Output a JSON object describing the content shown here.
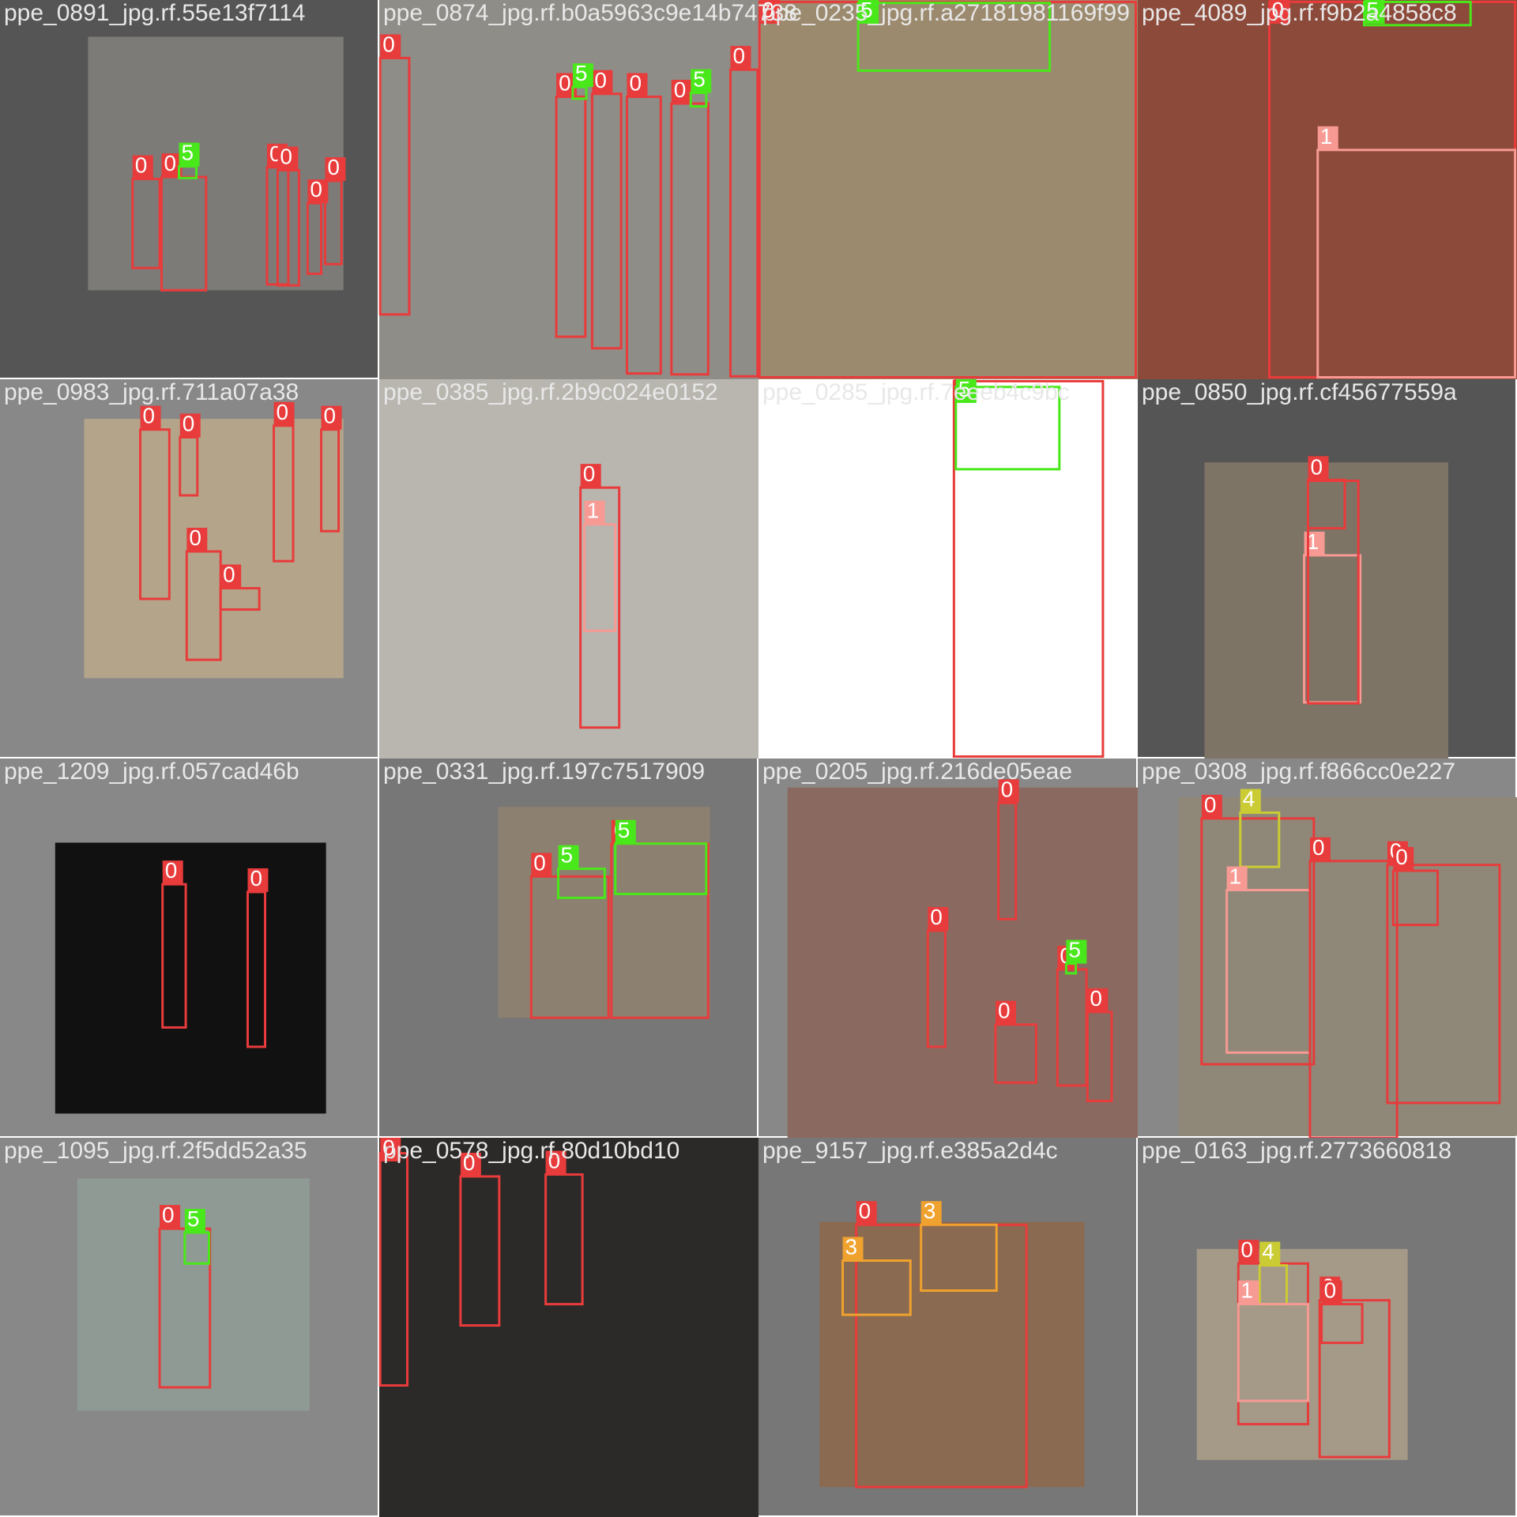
{
  "tiles": [
    {
      "filename": "ppe_0891_jpg.rf.55e13f7114",
      "labels": [
        "0",
        "0",
        "5",
        "0",
        "0",
        "0",
        "0"
      ]
    },
    {
      "filename": "ppe_0874_jpg.rf.b0a5963c9e14b74738",
      "labels": [
        "0",
        "0",
        "0",
        "0",
        "0",
        "0",
        "5",
        "5"
      ]
    },
    {
      "filename": "ppe_0235_jpg.rf.a27181981169f99",
      "labels": [
        "0",
        "5"
      ]
    },
    {
      "filename": "ppe_4089_jpg.rf.f9b2a4858c8",
      "labels": [
        "0",
        "1",
        "5"
      ]
    },
    {
      "filename": "ppe_0983_jpg.rf.711a07a38",
      "labels": [
        "0",
        "0",
        "0",
        "0",
        "0",
        "0"
      ]
    },
    {
      "filename": "ppe_0385_jpg.rf.2b9c024e0152",
      "labels": [
        "0",
        "1"
      ]
    },
    {
      "filename": "ppe_0285_jpg.rf.7eeeb4c9bc",
      "labels": [
        "0",
        "5"
      ]
    },
    {
      "filename": "ppe_0850_jpg.rf.cf45677559a",
      "labels": [
        "0",
        "1",
        "0"
      ]
    },
    {
      "filename": "ppe_1209_jpg.rf.057cad46b",
      "labels": [
        "0",
        "0"
      ]
    },
    {
      "filename": "ppe_0331_jpg.rf.197c7517909",
      "labels": [
        "0",
        "0",
        "5",
        "5"
      ]
    },
    {
      "filename": "ppe_0205_jpg.rf.216de05eae",
      "labels": [
        "0",
        "0",
        "0",
        "0",
        "0",
        "5"
      ]
    },
    {
      "filename": "ppe_0308_jpg.rf.f866cc0e227",
      "labels": [
        "0",
        "4",
        "1",
        "0",
        "0",
        "0"
      ]
    },
    {
      "filename": "ppe_1095_jpg.rf.2f5dd52a35",
      "labels": [
        "0",
        "5"
      ]
    },
    {
      "filename": "ppe_0578_jpg.rf.80d10bd10",
      "labels": [
        "0",
        "0",
        "0"
      ]
    },
    {
      "filename": "ppe_9157_jpg.rf.e385a2d4c",
      "labels": [
        "0",
        "3",
        "3"
      ]
    },
    {
      "filename": "ppe_0163_jpg.rf.2773660818",
      "labels": [
        "0",
        "4",
        "1",
        "0",
        "0"
      ]
    }
  ]
}
